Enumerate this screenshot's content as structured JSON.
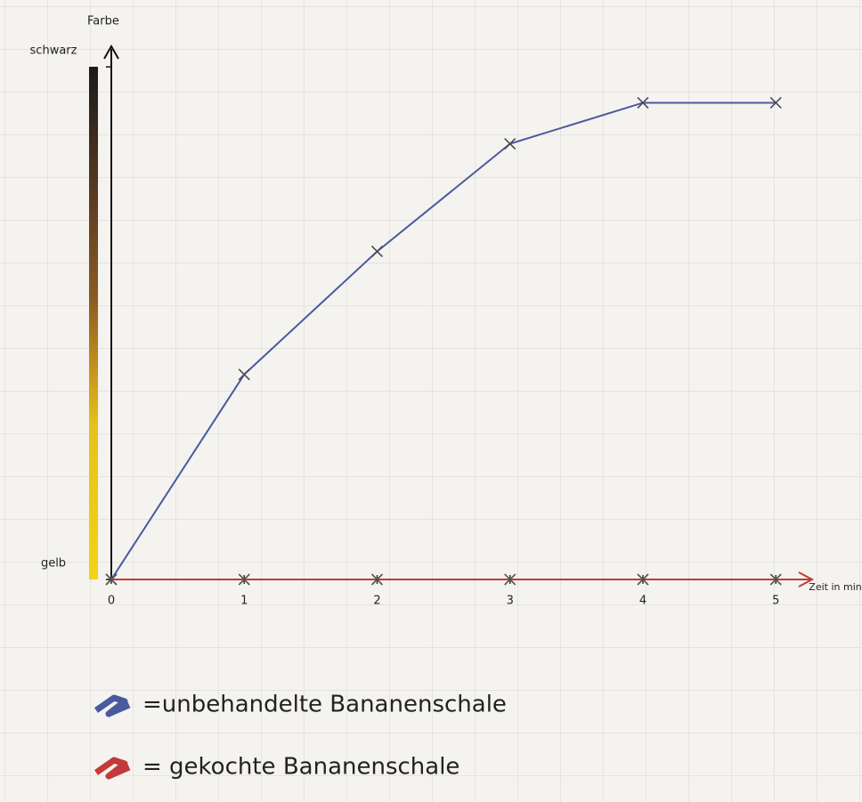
{
  "chart_data": {
    "type": "line",
    "y_label": "Farbe",
    "x_label": "Zeit in min",
    "x": [
      0,
      1,
      2,
      3,
      4,
      5
    ],
    "xlim": [
      0,
      5.3
    ],
    "xticks": [
      0,
      1,
      2,
      3,
      4,
      5
    ],
    "ylim": [
      0,
      1.035
    ],
    "yticks": [
      {
        "value": 0,
        "label": "gelb"
      },
      {
        "value": 1,
        "label": "schwarz"
      }
    ],
    "series": [
      {
        "name": "=unbehandelte Bananenschale",
        "color": "#4a5a9e",
        "values": [
          0,
          0.4,
          0.64,
          0.85,
          0.93,
          0.93
        ]
      },
      {
        "name": "= gekochte Bananenschale",
        "color": "#c23a3a",
        "values": [
          0,
          0,
          0,
          0,
          0,
          0
        ]
      }
    ]
  }
}
